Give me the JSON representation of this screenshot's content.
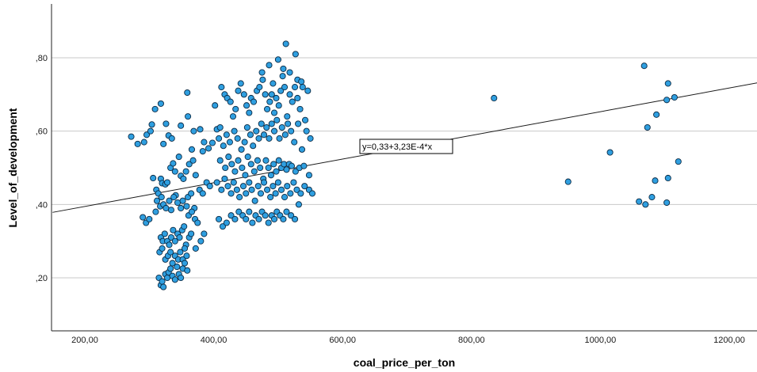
{
  "chart_data": {
    "type": "scatter",
    "title": "",
    "xlabel": "coal_price_per_ton",
    "ylabel": "Level_of_development",
    "xlim": [
      150,
      1250
    ],
    "ylim": [
      0.08,
      0.95
    ],
    "xticks": [
      200,
      400,
      600,
      800,
      1000,
      1200
    ],
    "xtick_labels": [
      "200,00",
      "400,00",
      "600,00",
      "800,00",
      "1000,00",
      "1200,00"
    ],
    "yticks": [
      0.2,
      0.4,
      0.6,
      0.8
    ],
    "ytick_labels": [
      ",20",
      ",40",
      ",60",
      ",80"
    ],
    "grid": "horizontal",
    "marker_color": "#2f9fe0",
    "marker_edge_color": "#0b2a44",
    "fit_line": {
      "intercept": 0.33,
      "slope": 0.000323,
      "label": "y=0,33+3,23E-4*x"
    },
    "points": [
      [
        272,
        0.585
      ],
      [
        282,
        0.565
      ],
      [
        292,
        0.57
      ],
      [
        296,
        0.59
      ],
      [
        302,
        0.6
      ],
      [
        304,
        0.618
      ],
      [
        309,
        0.66
      ],
      [
        318,
        0.675
      ],
      [
        322,
        0.565
      ],
      [
        330,
        0.588
      ],
      [
        326,
        0.62
      ],
      [
        335,
        0.58
      ],
      [
        349,
        0.615
      ],
      [
        360,
        0.64
      ],
      [
        359,
        0.705
      ],
      [
        369,
        0.6
      ],
      [
        379,
        0.605
      ],
      [
        385,
        0.57
      ],
      [
        392,
        0.553
      ],
      [
        366,
        0.55
      ],
      [
        383,
        0.545
      ],
      [
        398,
        0.568
      ],
      [
        290,
        0.365
      ],
      [
        295,
        0.35
      ],
      [
        300,
        0.36
      ],
      [
        306,
        0.472
      ],
      [
        311,
        0.44
      ],
      [
        314,
        0.43
      ],
      [
        318,
        0.47
      ],
      [
        320,
        0.458
      ],
      [
        325,
        0.455
      ],
      [
        328,
        0.46
      ],
      [
        333,
        0.5
      ],
      [
        340,
        0.49
      ],
      [
        337,
        0.512
      ],
      [
        346,
        0.53
      ],
      [
        349,
        0.478
      ],
      [
        353,
        0.47
      ],
      [
        357,
        0.49
      ],
      [
        362,
        0.51
      ],
      [
        368,
        0.52
      ],
      [
        372,
        0.48
      ],
      [
        378,
        0.44
      ],
      [
        383,
        0.43
      ],
      [
        389,
        0.46
      ],
      [
        394,
        0.45
      ],
      [
        341,
        0.425
      ],
      [
        360,
        0.42
      ],
      [
        370,
        0.39
      ],
      [
        365,
        0.43
      ],
      [
        310,
        0.38
      ],
      [
        312,
        0.41
      ],
      [
        317,
        0.395
      ],
      [
        319,
        0.42
      ],
      [
        322,
        0.4
      ],
      [
        326,
        0.39
      ],
      [
        331,
        0.41
      ],
      [
        334,
        0.385
      ],
      [
        338,
        0.42
      ],
      [
        344,
        0.405
      ],
      [
        349,
        0.39
      ],
      [
        352,
        0.41
      ],
      [
        358,
        0.395
      ],
      [
        361,
        0.37
      ],
      [
        366,
        0.38
      ],
      [
        371,
        0.36
      ],
      [
        375,
        0.35
      ],
      [
        380,
        0.3
      ],
      [
        385,
        0.32
      ],
      [
        318,
        0.31
      ],
      [
        321,
        0.3
      ],
      [
        324,
        0.32
      ],
      [
        328,
        0.3
      ],
      [
        331,
        0.29
      ],
      [
        334,
        0.31
      ],
      [
        337,
        0.33
      ],
      [
        340,
        0.3
      ],
      [
        344,
        0.32
      ],
      [
        347,
        0.31
      ],
      [
        351,
        0.33
      ],
      [
        354,
        0.34
      ],
      [
        357,
        0.29
      ],
      [
        362,
        0.31
      ],
      [
        365,
        0.32
      ],
      [
        372,
        0.28
      ],
      [
        316,
        0.27
      ],
      [
        320,
        0.28
      ],
      [
        325,
        0.25
      ],
      [
        329,
        0.26
      ],
      [
        333,
        0.27
      ],
      [
        336,
        0.24
      ],
      [
        340,
        0.26
      ],
      [
        345,
        0.25
      ],
      [
        348,
        0.27
      ],
      [
        352,
        0.25
      ],
      [
        355,
        0.28
      ],
      [
        358,
        0.26
      ],
      [
        315,
        0.2
      ],
      [
        318,
        0.18
      ],
      [
        320,
        0.19
      ],
      [
        322,
        0.175
      ],
      [
        325,
        0.21
      ],
      [
        328,
        0.2
      ],
      [
        330,
        0.215
      ],
      [
        333,
        0.225
      ],
      [
        336,
        0.205
      ],
      [
        340,
        0.195
      ],
      [
        343,
        0.23
      ],
      [
        346,
        0.21
      ],
      [
        349,
        0.2
      ],
      [
        352,
        0.225
      ],
      [
        355,
        0.24
      ],
      [
        359,
        0.22
      ],
      [
        402,
        0.67
      ],
      [
        405,
        0.605
      ],
      [
        410,
        0.61
      ],
      [
        412,
        0.72
      ],
      [
        417,
        0.7
      ],
      [
        421,
        0.69
      ],
      [
        426,
        0.68
      ],
      [
        430,
        0.64
      ],
      [
        434,
        0.66
      ],
      [
        438,
        0.71
      ],
      [
        442,
        0.73
      ],
      [
        447,
        0.7
      ],
      [
        451,
        0.67
      ],
      [
        455,
        0.65
      ],
      [
        458,
        0.69
      ],
      [
        462,
        0.68
      ],
      [
        467,
        0.71
      ],
      [
        471,
        0.72
      ],
      [
        476,
        0.74
      ],
      [
        480,
        0.7
      ],
      [
        483,
        0.66
      ],
      [
        487,
        0.68
      ],
      [
        490,
        0.7
      ],
      [
        492,
        0.73
      ],
      [
        494,
        0.65
      ],
      [
        497,
        0.69
      ],
      [
        501,
        0.67
      ],
      [
        504,
        0.71
      ],
      [
        507,
        0.75
      ],
      [
        510,
        0.72
      ],
      [
        514,
        0.64
      ],
      [
        518,
        0.7
      ],
      [
        522,
        0.68
      ],
      [
        526,
        0.72
      ],
      [
        530,
        0.69
      ],
      [
        534,
        0.66
      ],
      [
        538,
        0.72
      ],
      [
        542,
        0.63
      ],
      [
        546,
        0.71
      ],
      [
        475,
        0.76
      ],
      [
        486,
        0.78
      ],
      [
        500,
        0.795
      ],
      [
        508,
        0.77
      ],
      [
        512,
        0.838
      ],
      [
        518,
        0.76
      ],
      [
        527,
        0.81
      ],
      [
        530,
        0.74
      ],
      [
        536,
        0.735
      ],
      [
        408,
        0.58
      ],
      [
        415,
        0.56
      ],
      [
        420,
        0.59
      ],
      [
        425,
        0.57
      ],
      [
        432,
        0.6
      ],
      [
        437,
        0.58
      ],
      [
        443,
        0.55
      ],
      [
        448,
        0.57
      ],
      [
        452,
        0.61
      ],
      [
        457,
        0.59
      ],
      [
        461,
        0.56
      ],
      [
        466,
        0.6
      ],
      [
        470,
        0.58
      ],
      [
        474,
        0.62
      ],
      [
        478,
        0.59
      ],
      [
        482,
        0.61
      ],
      [
        486,
        0.58
      ],
      [
        490,
        0.62
      ],
      [
        494,
        0.6
      ],
      [
        498,
        0.63
      ],
      [
        502,
        0.58
      ],
      [
        506,
        0.61
      ],
      [
        511,
        0.59
      ],
      [
        515,
        0.62
      ],
      [
        520,
        0.6
      ],
      [
        525,
        0.57
      ],
      [
        531,
        0.62
      ],
      [
        537,
        0.55
      ],
      [
        544,
        0.6
      ],
      [
        550,
        0.58
      ],
      [
        410,
        0.52
      ],
      [
        418,
        0.5
      ],
      [
        423,
        0.53
      ],
      [
        428,
        0.51
      ],
      [
        433,
        0.49
      ],
      [
        438,
        0.52
      ],
      [
        444,
        0.5
      ],
      [
        449,
        0.48
      ],
      [
        453,
        0.53
      ],
      [
        458,
        0.51
      ],
      [
        463,
        0.49
      ],
      [
        468,
        0.52
      ],
      [
        472,
        0.5
      ],
      [
        477,
        0.47
      ],
      [
        481,
        0.52
      ],
      [
        485,
        0.5
      ],
      [
        489,
        0.48
      ],
      [
        493,
        0.51
      ],
      [
        497,
        0.49
      ],
      [
        501,
        0.52
      ],
      [
        505,
        0.5
      ],
      [
        509,
        0.51
      ],
      [
        513,
        0.495
      ],
      [
        517,
        0.51
      ],
      [
        521,
        0.505
      ],
      [
        527,
        0.49
      ],
      [
        533,
        0.5
      ],
      [
        540,
        0.505
      ],
      [
        548,
        0.48
      ],
      [
        405,
        0.46
      ],
      [
        412,
        0.44
      ],
      [
        417,
        0.47
      ],
      [
        422,
        0.45
      ],
      [
        427,
        0.43
      ],
      [
        431,
        0.46
      ],
      [
        436,
        0.44
      ],
      [
        440,
        0.42
      ],
      [
        446,
        0.45
      ],
      [
        450,
        0.43
      ],
      [
        455,
        0.46
      ],
      [
        459,
        0.44
      ],
      [
        464,
        0.41
      ],
      [
        469,
        0.45
      ],
      [
        473,
        0.43
      ],
      [
        478,
        0.46
      ],
      [
        483,
        0.44
      ],
      [
        488,
        0.42
      ],
      [
        492,
        0.45
      ],
      [
        496,
        0.43
      ],
      [
        500,
        0.46
      ],
      [
        505,
        0.44
      ],
      [
        510,
        0.42
      ],
      [
        514,
        0.45
      ],
      [
        519,
        0.43
      ],
      [
        524,
        0.46
      ],
      [
        529,
        0.44
      ],
      [
        535,
        0.43
      ],
      [
        541,
        0.45
      ],
      [
        548,
        0.44
      ],
      [
        553,
        0.43
      ],
      [
        408,
        0.36
      ],
      [
        414,
        0.34
      ],
      [
        420,
        0.35
      ],
      [
        427,
        0.37
      ],
      [
        433,
        0.36
      ],
      [
        439,
        0.38
      ],
      [
        445,
        0.37
      ],
      [
        450,
        0.36
      ],
      [
        455,
        0.38
      ],
      [
        460,
        0.35
      ],
      [
        465,
        0.37
      ],
      [
        470,
        0.36
      ],
      [
        475,
        0.38
      ],
      [
        480,
        0.37
      ],
      [
        485,
        0.35
      ],
      [
        490,
        0.37
      ],
      [
        494,
        0.36
      ],
      [
        498,
        0.38
      ],
      [
        503,
        0.37
      ],
      [
        508,
        0.36
      ],
      [
        513,
        0.38
      ],
      [
        520,
        0.37
      ],
      [
        526,
        0.36
      ],
      [
        532,
        0.4
      ],
      [
        835,
        0.69
      ],
      [
        950,
        0.462
      ],
      [
        1015,
        0.542
      ],
      [
        1060,
        0.408
      ],
      [
        1068,
        0.778
      ],
      [
        1070,
        0.4
      ],
      [
        1073,
        0.61
      ],
      [
        1080,
        0.42
      ],
      [
        1085,
        0.465
      ],
      [
        1087,
        0.645
      ],
      [
        1103,
        0.405
      ],
      [
        1103,
        0.685
      ],
      [
        1105,
        0.73
      ],
      [
        1105,
        0.472
      ],
      [
        1115,
        0.692
      ],
      [
        1121,
        0.517
      ]
    ]
  }
}
